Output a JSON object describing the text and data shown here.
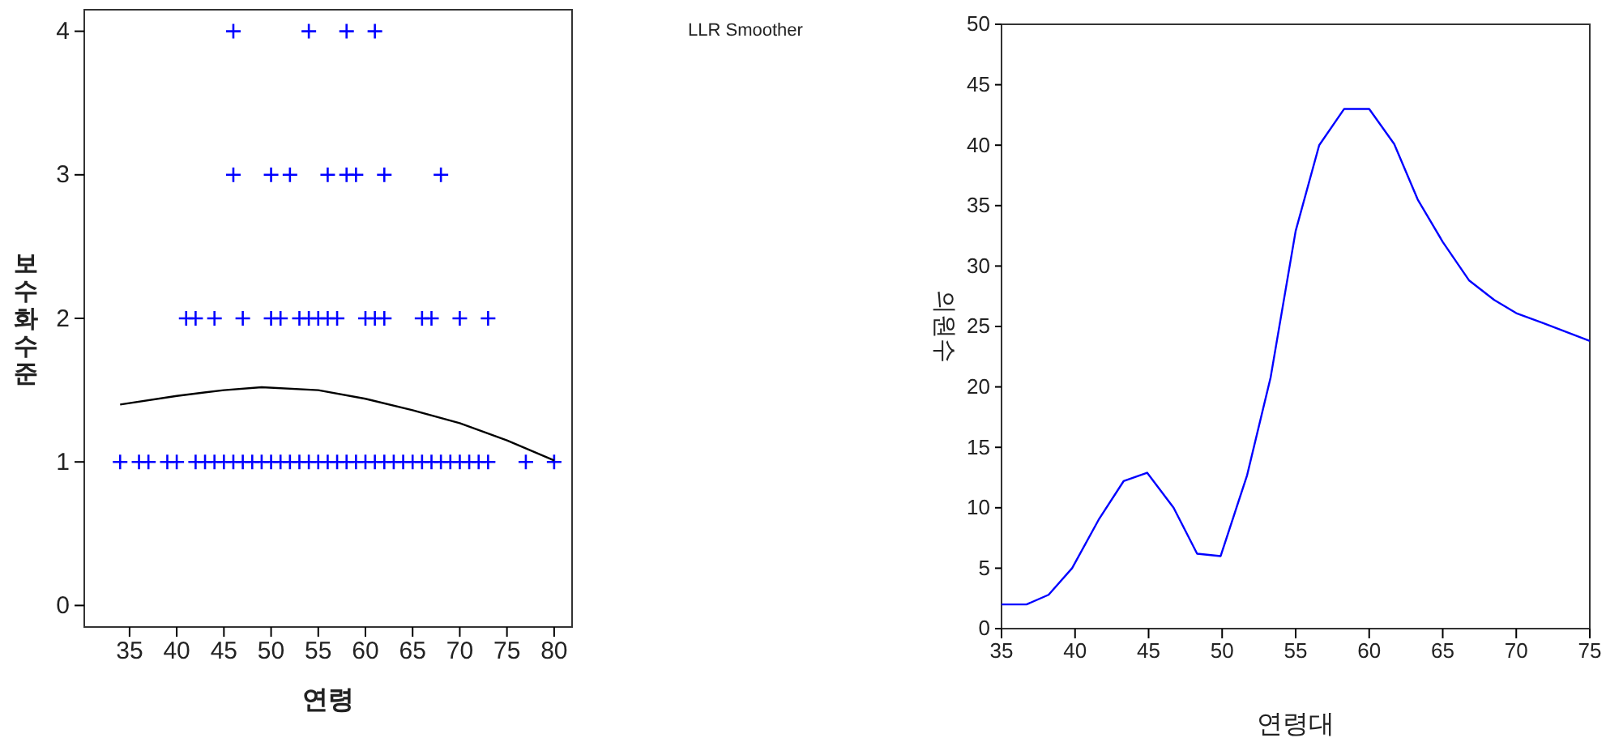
{
  "chart_data": [
    {
      "type": "scatter",
      "xlabel": "연령",
      "ylabel": "보수화수준",
      "annotations": [
        "LLR Smoother"
      ],
      "xlim": [
        30.2,
        81.9
      ],
      "ylim": [
        -0.15,
        4.15
      ],
      "xticks": [
        35,
        40,
        45,
        50,
        55,
        60,
        65,
        70,
        75,
        80
      ],
      "yticks": [
        0,
        1,
        2,
        3,
        4
      ],
      "series": [
        {
          "marker": "cross",
          "color": "#0000ff",
          "x": [
            46,
            54,
            58,
            61,
            46,
            50,
            52,
            56,
            58,
            59,
            62,
            68,
            41,
            42,
            44,
            47,
            50,
            51,
            53,
            54,
            55,
            56,
            57,
            60,
            61,
            62,
            66,
            67,
            70,
            73,
            34,
            36,
            37,
            39,
            40,
            42,
            43,
            44,
            45,
            46,
            47,
            48,
            49,
            50,
            51,
            52,
            53,
            54,
            55,
            56,
            57,
            58,
            59,
            60,
            61,
            62,
            63,
            64,
            65,
            66,
            67,
            68,
            69,
            70,
            71,
            72,
            73,
            77,
            80
          ],
          "values": [
            4,
            4,
            4,
            4,
            3,
            3,
            3,
            3,
            3,
            3,
            3,
            3,
            2,
            2,
            2,
            2,
            2,
            2,
            2,
            2,
            2,
            2,
            2,
            2,
            2,
            2,
            2,
            2,
            2,
            2,
            1,
            1,
            1,
            1,
            1,
            1,
            1,
            1,
            1,
            1,
            1,
            1,
            1,
            1,
            1,
            1,
            1,
            1,
            1,
            1,
            1,
            1,
            1,
            1,
            1,
            1,
            1,
            1,
            1,
            1,
            1,
            1,
            1,
            1,
            1,
            1,
            1,
            1,
            1
          ]
        },
        {
          "type": "line",
          "marker": "none",
          "color": "#000000",
          "x": [
            34,
            40,
            45,
            49,
            55,
            60,
            65,
            70,
            75,
            80
          ],
          "values": [
            1.4,
            1.46,
            1.5,
            1.52,
            1.5,
            1.44,
            1.36,
            1.27,
            1.15,
            1.01
          ]
        }
      ]
    },
    {
      "type": "line",
      "xlabel": "연령대",
      "ylabel": "의원수",
      "xlim": [
        35,
        75
      ],
      "ylim": [
        0,
        50
      ],
      "xticks": [
        35,
        40,
        45,
        50,
        55,
        60,
        65,
        70,
        75
      ],
      "yticks": [
        0,
        5,
        10,
        15,
        20,
        25,
        30,
        35,
        40,
        45,
        50
      ],
      "marker": "none",
      "series": [
        {
          "color": "#0000ff",
          "x": [
            35,
            36.7,
            38.2,
            39.8,
            41.6,
            43.3,
            44.9,
            46.7,
            48.3,
            49.9,
            51.7,
            53.3,
            55,
            56.6,
            58.3,
            60,
            61.7,
            63.3,
            65,
            66.8,
            68.5,
            70,
            71.8,
            75
          ],
          "values": [
            2,
            2,
            2.8,
            5,
            9,
            12.2,
            12.9,
            10,
            6.2,
            6,
            12.7,
            20.8,
            32.9,
            40,
            43,
            43,
            40.1,
            35.5,
            32,
            28.8,
            27.2,
            26.1,
            25.3,
            23.8
          ]
        }
      ]
    }
  ]
}
